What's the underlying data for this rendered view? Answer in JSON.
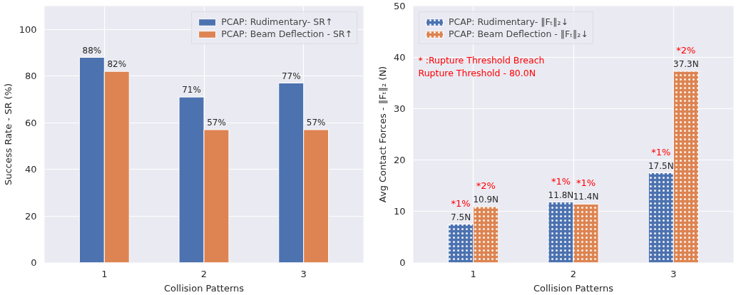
{
  "chart_data": [
    {
      "type": "bar",
      "xlabel": "Collision Patterns",
      "ylabel": "Success Rate - SR (%)",
      "categories": [
        "1",
        "2",
        "3"
      ],
      "series": [
        {
          "name": "PCAP: Rudimentary- SR↑",
          "color": "#4c72b0",
          "values": [
            88,
            71,
            77
          ],
          "value_labels": [
            "88%",
            "71%",
            "77%"
          ]
        },
        {
          "name": "PCAP: Beam Deflection - SR↑",
          "color": "#dd8452",
          "values": [
            82,
            57,
            57
          ],
          "value_labels": [
            "82%",
            "57%",
            "57%"
          ]
        }
      ],
      "ylim": [
        0,
        110
      ],
      "yticks": [
        0,
        20,
        40,
        60,
        80,
        100
      ],
      "grid": true,
      "legend": "top right"
    },
    {
      "type": "bar",
      "xlabel": "Collision Patterns",
      "ylabel": "Avg Contact Forces - ‖Fₜ‖₂ (N)",
      "categories": [
        "1",
        "2",
        "3"
      ],
      "series": [
        {
          "name": "PCAP: Rudimentary- ‖Fₜ‖₂↓",
          "color": "#4c72b0",
          "values": [
            7.5,
            11.8,
            17.5
          ],
          "value_labels": [
            "7.5N",
            "11.8N",
            "17.5N"
          ]
        },
        {
          "name": "PCAP: Beam Deflection - ‖Fₜ‖₂↓",
          "color": "#dd8452",
          "values": [
            10.9,
            11.4,
            37.3
          ],
          "value_labels": [
            "10.9N",
            "11.4N",
            "37.3N"
          ]
        }
      ],
      "annotations": [
        {
          "text": "*1%",
          "x": "1",
          "y": 7.5
        },
        {
          "text": "*2%",
          "x": "1",
          "y": 10.9
        },
        {
          "text": "*1%",
          "x": "2",
          "y": 11.8
        },
        {
          "text": "*1%",
          "x": "2",
          "y": 11.4
        },
        {
          "text": "*1%",
          "x": "3",
          "y": 17.5
        },
        {
          "text": "*2%",
          "x": "3",
          "y": 37.3
        },
        "* :Rupture Threshold Breach\n   Rupture Threshold - 80.0N"
      ],
      "ylim": [
        0,
        50
      ],
      "yticks": [
        0,
        10,
        20,
        30,
        40,
        50
      ],
      "grid": true,
      "legend": "top left"
    }
  ]
}
